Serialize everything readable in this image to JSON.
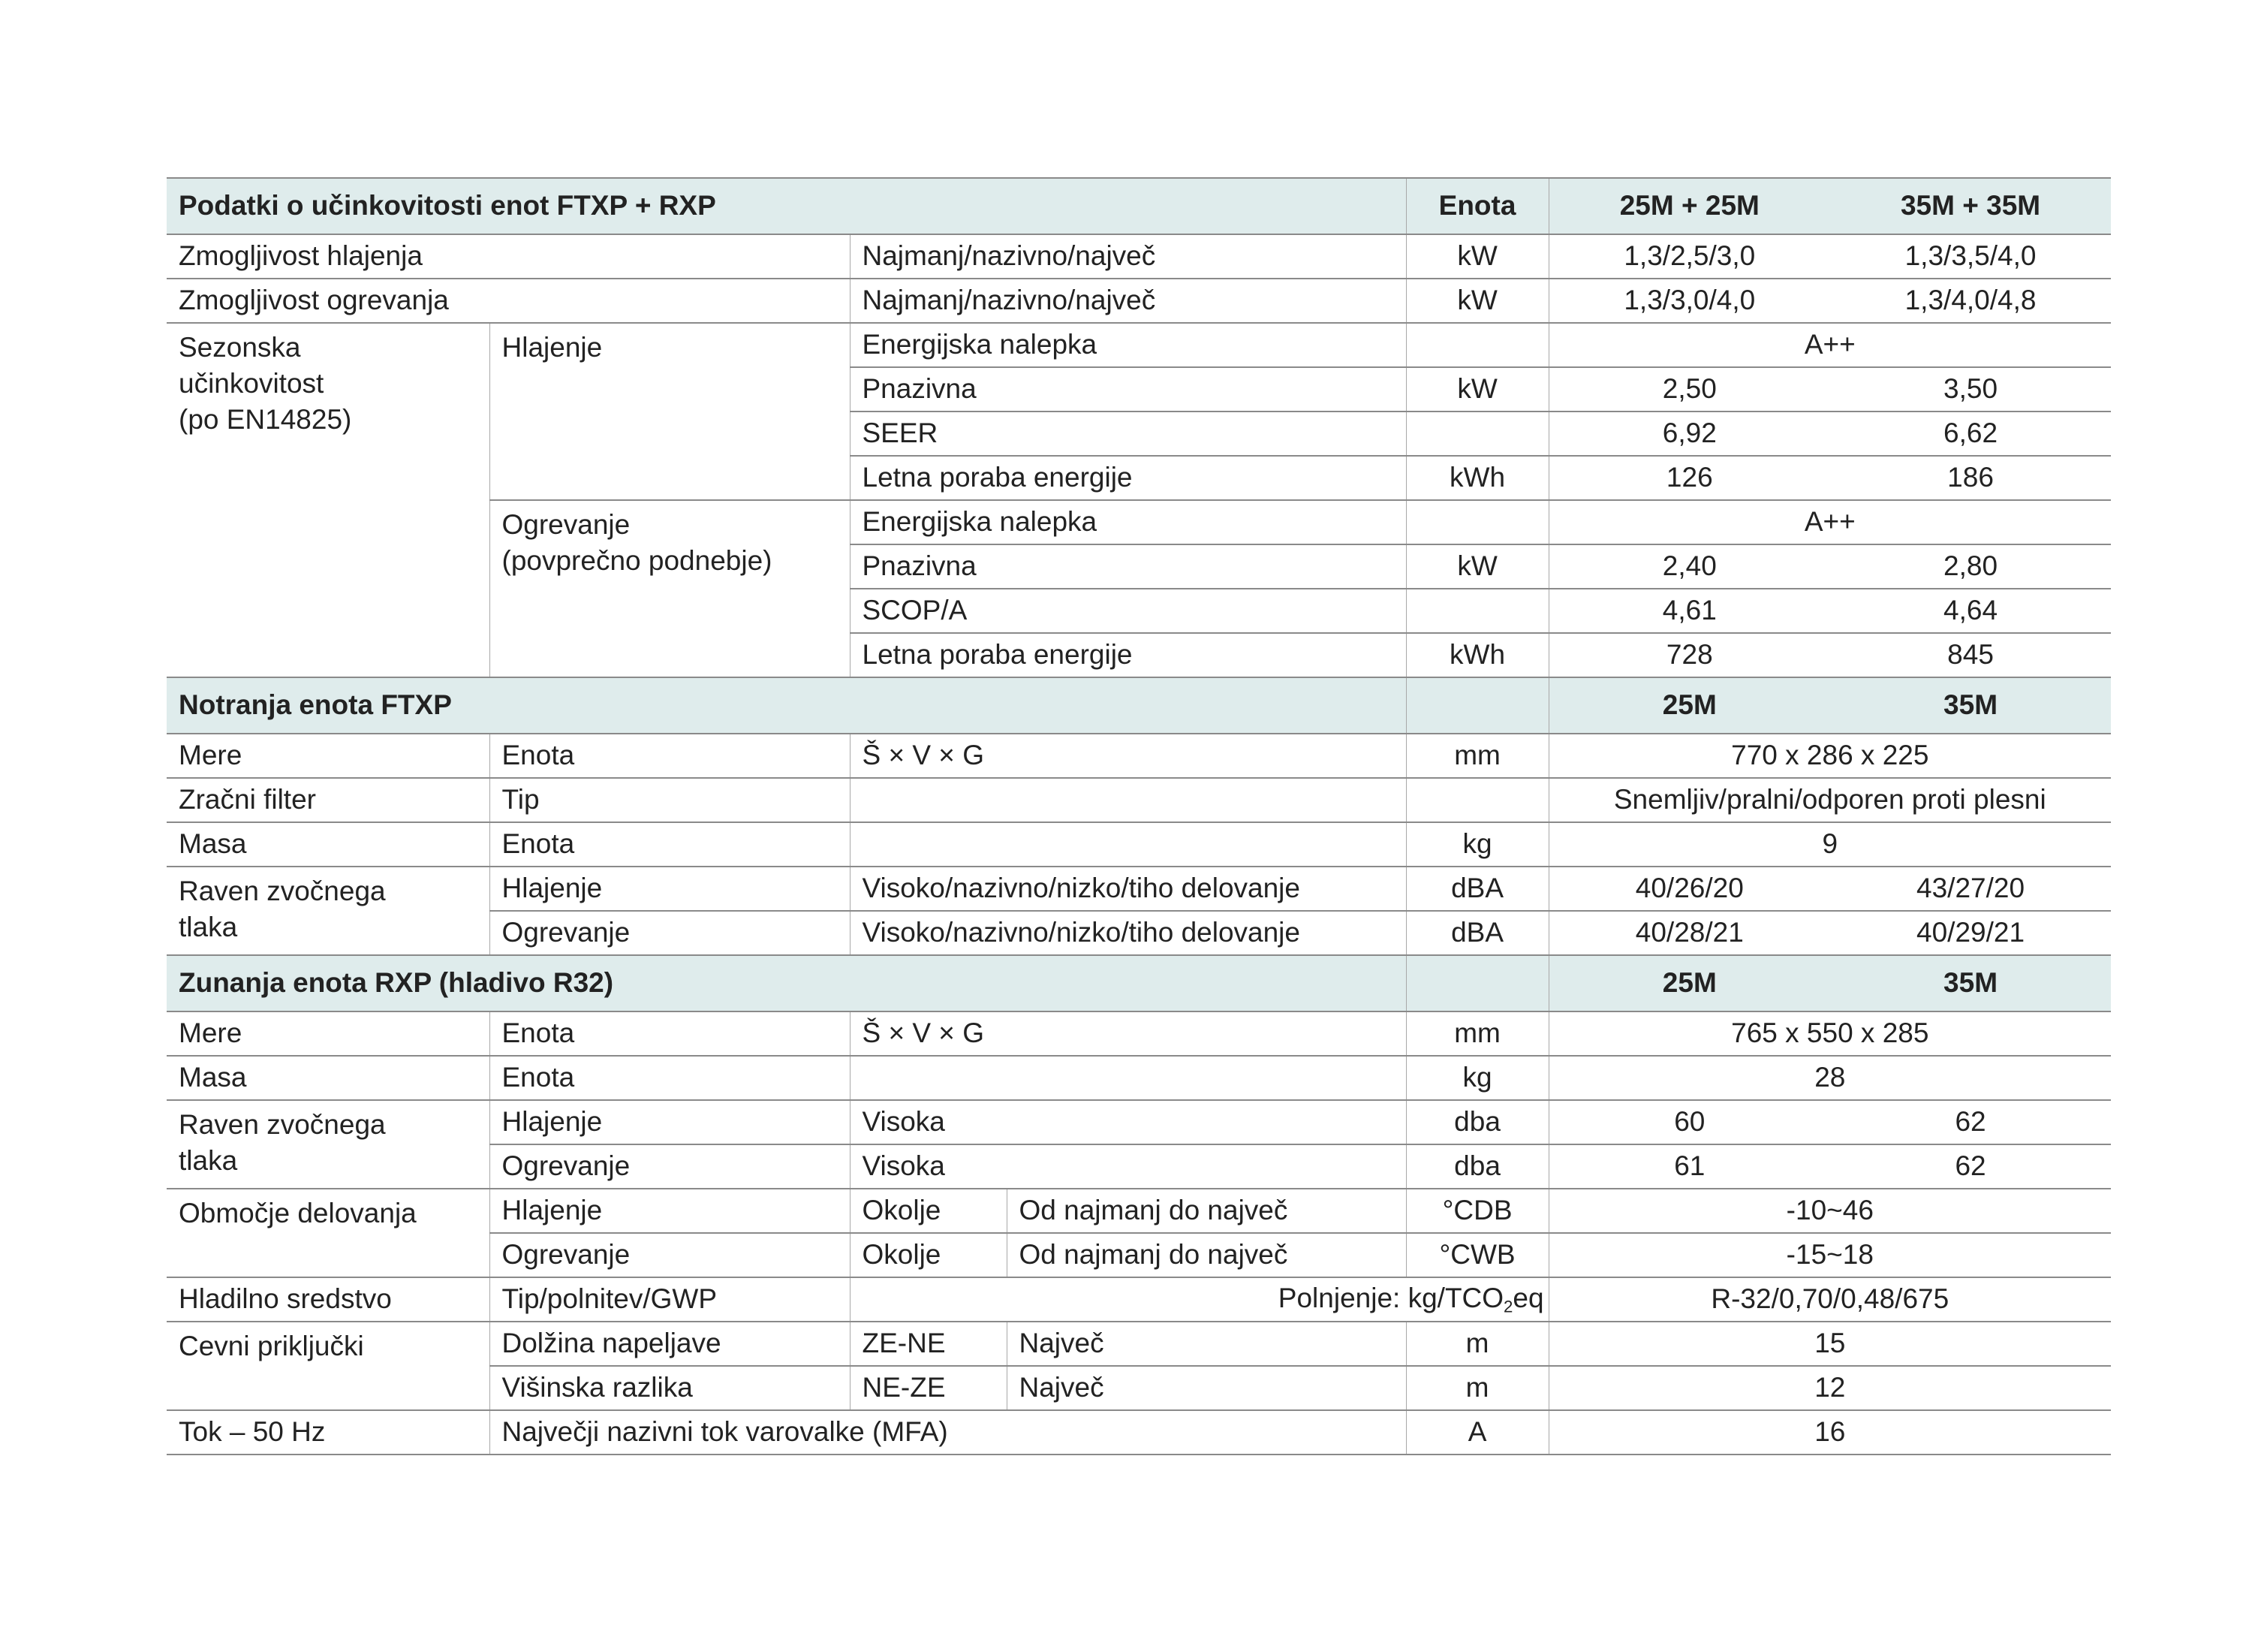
{
  "header": {
    "title": "Podatki o učinkovitosti enot FTXP + RXP",
    "unit": "Enota",
    "col_a": "25M + 25M",
    "col_b": "35M + 35M"
  },
  "perf": {
    "cooling_capacity": {
      "label": "Zmogljivost hlajenja",
      "spec": "Najmanj/nazivno/največ",
      "unit": "kW",
      "a": "1,3/2,5/3,0",
      "b": "1,3/3,5/4,0"
    },
    "heating_capacity": {
      "label": "Zmogljivost ogrevanja",
      "spec": "Najmanj/nazivno/največ",
      "unit": "kW",
      "a": "1,3/3,0/4,0",
      "b": "1,3/4,0/4,8"
    },
    "seasonal_label": "Sezonska\nučinkovitost\n(po EN14825)",
    "cooling": {
      "label": "Hlajenje",
      "energy_label": {
        "label": "Energijska nalepka",
        "value": "A++"
      },
      "pdesign": {
        "label": "Pnazivna",
        "unit": "kW",
        "a": "2,50",
        "b": "3,50"
      },
      "seer": {
        "label": "SEER",
        "a": "6,92",
        "b": "6,62"
      },
      "annual": {
        "label": "Letna poraba energije",
        "unit": "kWh",
        "a": "126",
        "b": "186"
      }
    },
    "heating": {
      "label": "Ogrevanje\n(povprečno podnebje)",
      "energy_label": {
        "label": "Energijska nalepka",
        "value": "A++"
      },
      "pdesign": {
        "label": "Pnazivna",
        "unit": "kW",
        "a": "2,40",
        "b": "2,80"
      },
      "scop": {
        "label": "SCOP/A",
        "a": "4,61",
        "b": "4,64"
      },
      "annual": {
        "label": "Letna poraba energije",
        "unit": "kWh",
        "a": "728",
        "b": "845"
      }
    }
  },
  "indoor": {
    "title": "Notranja enota FTXP",
    "col_a": "25M",
    "col_b": "35M",
    "dimensions": {
      "label": "Mere",
      "sub": "Enota",
      "spec": "Š × V × G",
      "unit": "mm",
      "value": "770 x 286 x 225"
    },
    "filter": {
      "label": "Zračni filter",
      "sub": "Tip",
      "value": "Snemljiv/pralni/odporen proti plesni"
    },
    "weight": {
      "label": "Masa",
      "sub": "Enota",
      "unit": "kg",
      "value": "9"
    },
    "sound_label": "Raven zvočnega\ntlaka",
    "sound_cooling": {
      "sub": "Hlajenje",
      "spec": "Visoko/nazivno/nizko/tiho delovanje",
      "unit": "dBA",
      "a": "40/26/20",
      "b": "43/27/20"
    },
    "sound_heating": {
      "sub": "Ogrevanje",
      "spec": "Visoko/nazivno/nizko/tiho delovanje",
      "unit": "dBA",
      "a": "40/28/21",
      "b": "40/29/21"
    }
  },
  "outdoor": {
    "title": "Zunanja enota RXP (hladivo R32)",
    "col_a": "25M",
    "col_b": "35M",
    "dimensions": {
      "label": "Mere",
      "sub": "Enota",
      "spec": "Š × V × G",
      "unit": "mm",
      "value": "765 x 550 x 285"
    },
    "weight": {
      "label": "Masa",
      "sub": "Enota",
      "unit": "kg",
      "value": "28"
    },
    "sound_label": "Raven zvočnega\ntlaka",
    "sound_cooling": {
      "sub": "Hlajenje",
      "spec": "Visoka",
      "unit": "dba",
      "a": "60",
      "b": "62"
    },
    "sound_heating": {
      "sub": "Ogrevanje",
      "spec": "Visoka",
      "unit": "dba",
      "a": "61",
      "b": "62"
    },
    "range_label": "Območje delovanja",
    "range_cooling": {
      "sub": "Hlajenje",
      "spec": "Okolje",
      "spec2": "Od najmanj do največ",
      "unit": "°CDB",
      "value": "-10~46"
    },
    "range_heating": {
      "sub": "Ogrevanje",
      "spec": "Okolje",
      "spec2": "Od najmanj do največ",
      "unit": "°CWB",
      "value": "-15~18"
    },
    "refrigerant": {
      "label": "Hladilno sredstvo",
      "sub": "Tip/polnitev/GWP",
      "spec": "Polnjenje: kg/TCO",
      "spec_sub": "2",
      "spec_end": "eq",
      "value": "R-32/0,70/0,48/675"
    },
    "piping_label": "Cevni priključki",
    "pipe_length": {
      "sub": "Dolžina napeljave",
      "spec": "ZE-NE",
      "spec2": "Največ",
      "unit": "m",
      "value": "15"
    },
    "pipe_height": {
      "sub": "Višinska razlika",
      "spec": "NE-ZE",
      "spec2": "Največ",
      "unit": "m",
      "value": "12"
    },
    "current": {
      "label": "Tok – 50 Hz",
      "spec": "Največji nazivni tok varovalke (MFA)",
      "unit": "A",
      "value": "16"
    }
  }
}
